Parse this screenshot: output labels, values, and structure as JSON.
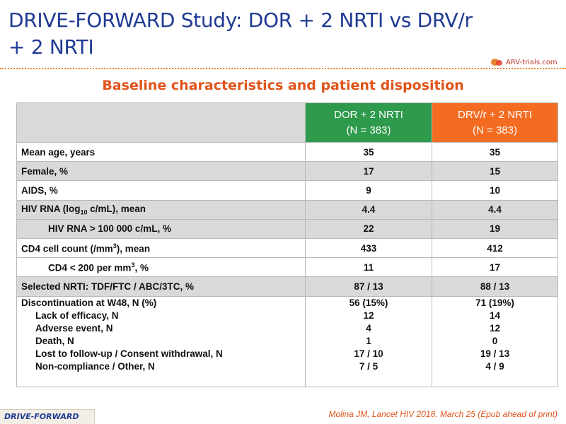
{
  "title": {
    "line1": "DRIVE-FORWARD Study: DOR + 2 NRTI vs DRV/r",
    "line2": "+ 2 NRTI"
  },
  "logo": {
    "text": "ARV-trials.com"
  },
  "subtitle": "Baseline characteristics and patient disposition",
  "table": {
    "headers": {
      "dor": {
        "line1": "DOR + 2 NRTI",
        "line2": "(N = 383)"
      },
      "drv": {
        "line1": "DRV/r + 2 NRTI",
        "line2": "(N = 383)"
      }
    },
    "rows": [
      {
        "label": "Mean age, years",
        "dor": "35",
        "drv": "35"
      },
      {
        "label": "Female, %",
        "dor": "17",
        "drv": "15"
      },
      {
        "label": "AIDS, %",
        "dor": "9",
        "drv": "10"
      },
      {
        "label_pre": "HIV RNA (log",
        "label_sub": "10",
        "label_post": " c/mL), mean",
        "dor": "4.4",
        "drv": "4.4"
      },
      {
        "label": "HIV RNA > 100 000 c/mL, %",
        "dor": "22",
        "drv": "19"
      },
      {
        "label_pre": "CD4 cell count (/mm",
        "label_sup": "3",
        "label_post": "), mean",
        "dor": "433",
        "drv": "412"
      },
      {
        "label_pre": "CD4 < 200 per mm",
        "label_sup": "3",
        "label_post": ", %",
        "dor": "11",
        "drv": "17"
      },
      {
        "label": "Selected NRTI: TDF/FTC / ABC/3TC, %",
        "dor": "87 / 13",
        "drv": "88 / 13"
      }
    ],
    "discontinuation": {
      "label": "Discontinuation at W48, N (%)",
      "dor": "56 (15%)",
      "drv": "71 (19%)",
      "items": [
        {
          "label": "Lack of efficacy, N",
          "dor": "12",
          "drv": "14"
        },
        {
          "label": "Adverse event, N",
          "dor": "4",
          "drv": "12"
        },
        {
          "label": "Death, N",
          "dor": "1",
          "drv": "0"
        },
        {
          "label": "Lost to follow-up / Consent withdrawal, N",
          "dor": "17 / 10",
          "drv": "19 / 13"
        },
        {
          "label": "Non-compliance / Other, N",
          "dor": "7 / 5",
          "drv": "4 / 9"
        }
      ]
    }
  },
  "footer": {
    "tag": "DRIVE-FORWARD",
    "citation": "Molina JM, Lancet HIV 2018, March 25 (Epub ahead of print)"
  },
  "colors": {
    "title": "#1f3a93",
    "accent": "#e0531a",
    "dor_header": "#2e9a4b",
    "drv_header": "#f36c21",
    "row_grey": "#d9d9d9"
  }
}
